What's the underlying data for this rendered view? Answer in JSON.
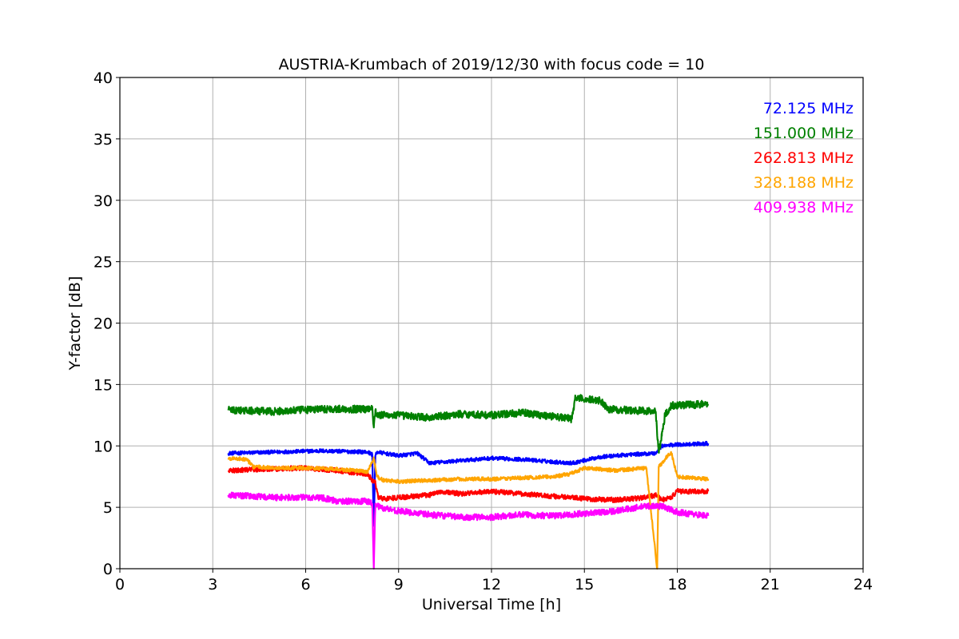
{
  "chart_data": {
    "type": "line",
    "title": "AUSTRIA-Krumbach of 2019/12/30 with focus code = 10",
    "xlabel": "Universal Time [h]",
    "ylabel": "Y-factor [dB]",
    "xlim": [
      0,
      24
    ],
    "ylim": [
      0,
      40
    ],
    "xticks": [
      "0",
      "3",
      "6",
      "9",
      "12",
      "15",
      "18",
      "21",
      "24"
    ],
    "yticks": [
      "0",
      "5",
      "10",
      "15",
      "20",
      "25",
      "30",
      "35",
      "40"
    ],
    "grid": true,
    "legend_placement": "top-right",
    "series": [
      {
        "name": "72.125 MHz",
        "color": "#0000ff",
        "noise": 0.15,
        "x": [
          3.5,
          5,
          6.5,
          8,
          8.15,
          8.2,
          8.25,
          8.3,
          9,
          9.6,
          10,
          11,
          12,
          13,
          14,
          14.6,
          15.5,
          16.5,
          17.3,
          17.5,
          18,
          19
        ],
        "y": [
          9.4,
          9.5,
          9.6,
          9.5,
          9.3,
          3.5,
          9.2,
          9.5,
          9.2,
          9.4,
          8.6,
          8.8,
          9.0,
          8.9,
          8.7,
          8.6,
          9.1,
          9.3,
          9.4,
          10.0,
          10.1,
          10.2
        ]
      },
      {
        "name": "151.000 MHz",
        "color": "#008000",
        "noise": 0.3,
        "x": [
          3.5,
          5,
          6.5,
          8,
          8.15,
          8.2,
          8.25,
          8.3,
          9,
          10,
          11,
          12,
          13,
          14,
          14.6,
          14.7,
          15.5,
          15.8,
          16.5,
          17.3,
          17.4,
          17.5,
          17.6,
          17.8,
          19
        ],
        "y": [
          12.9,
          12.8,
          13.0,
          13.0,
          13.2,
          11.5,
          12.9,
          12.5,
          12.5,
          12.3,
          12.6,
          12.5,
          12.7,
          12.4,
          12.2,
          13.9,
          13.7,
          13.0,
          12.9,
          12.8,
          9.5,
          10.8,
          12.5,
          13.3,
          13.4
        ]
      },
      {
        "name": "262.813 MHz",
        "color": "#ff0000",
        "noise": 0.2,
        "x": [
          3.5,
          4.5,
          6,
          7,
          8,
          8.15,
          8.25,
          8.35,
          8.5,
          9,
          10,
          10.3,
          11,
          12,
          13,
          14,
          15,
          16,
          17,
          17.3,
          17.5,
          17.8,
          18,
          19
        ],
        "y": [
          8.0,
          8.1,
          8.2,
          8.0,
          7.7,
          7.2,
          7.0,
          5.8,
          5.7,
          5.8,
          6.0,
          6.3,
          6.1,
          6.3,
          6.1,
          5.9,
          5.7,
          5.6,
          5.8,
          6.0,
          5.6,
          5.8,
          6.3,
          6.3
        ]
      },
      {
        "name": "328.188 MHz",
        "color": "#ffa500",
        "noise": 0.15,
        "x": [
          3.5,
          4.1,
          4.3,
          5,
          6,
          7,
          8,
          8.2,
          8.3,
          8.5,
          9,
          10,
          11,
          12,
          13,
          14,
          14.5,
          15,
          16,
          17,
          17.35,
          17.4,
          17.5,
          17.8,
          18,
          19
        ],
        "y": [
          9.0,
          8.9,
          8.3,
          8.2,
          8.2,
          8.1,
          7.9,
          9.0,
          7.5,
          7.2,
          7.1,
          7.2,
          7.3,
          7.3,
          7.4,
          7.5,
          7.7,
          8.2,
          8.0,
          8.2,
          0.0,
          8.3,
          8.6,
          9.5,
          7.5,
          7.3
        ]
      },
      {
        "name": "409.938 MHz",
        "color": "#ff00ff",
        "noise": 0.25,
        "x": [
          3.5,
          5,
          6.5,
          7,
          8,
          8.15,
          8.2,
          8.25,
          8.4,
          9,
          10,
          11,
          12,
          13,
          14,
          15,
          16,
          17,
          17.5,
          18,
          19
        ],
        "y": [
          6.0,
          5.8,
          5.8,
          5.5,
          5.5,
          5.3,
          0.0,
          5.3,
          5.0,
          4.7,
          4.4,
          4.2,
          4.2,
          4.4,
          4.3,
          4.5,
          4.7,
          5.1,
          5.1,
          4.6,
          4.3
        ]
      }
    ]
  }
}
